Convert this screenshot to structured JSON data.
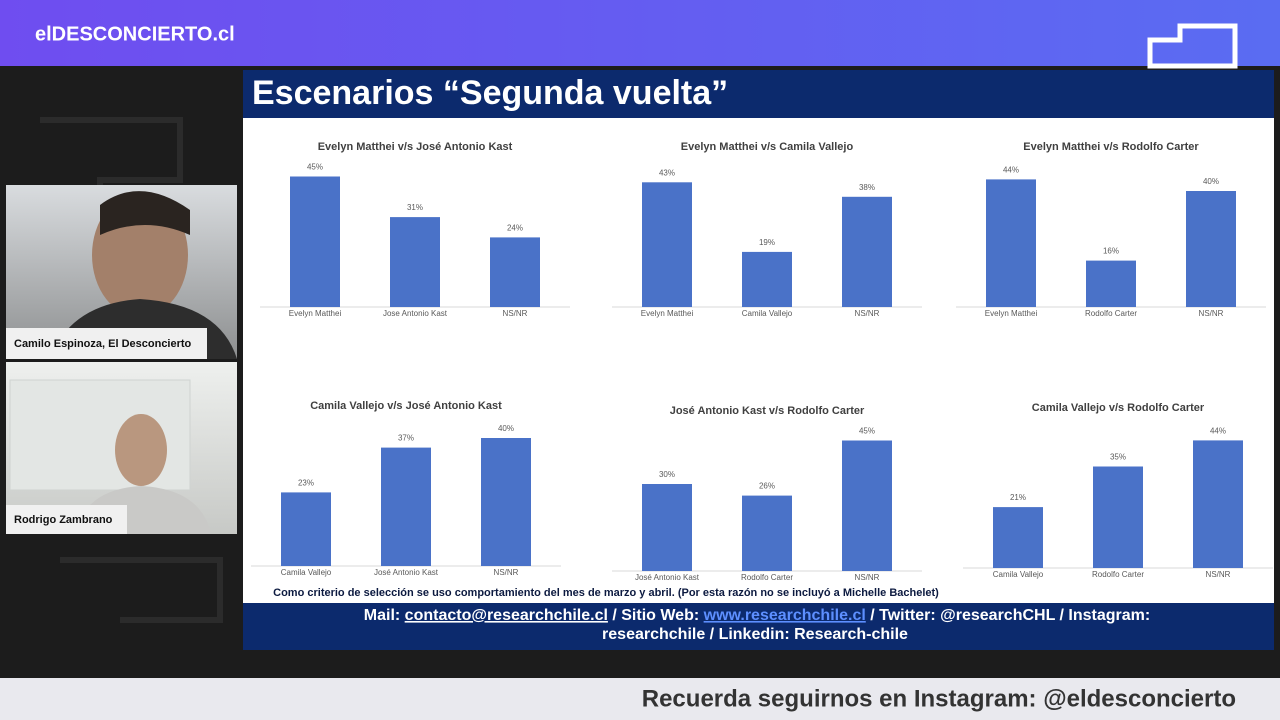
{
  "header": {
    "logo": "elDESCONCIERTO.cl"
  },
  "participants": [
    {
      "name": "Camilo Espinoza, El Desconcierto"
    },
    {
      "name": "Rodrigo Zambrano"
    }
  ],
  "slide": {
    "title": "Escenarios “Segunda vuelta”",
    "note": "Como criterio de selección se uso comportamiento del mes de marzo y abril. (Por esta razón no se incluyó a Michelle Bachelet)",
    "footer": [
      "Mail: ",
      "contacto@researchchile.cl",
      " / Sitio Web: ",
      "www.researchchile.cl",
      " / Twitter: @researchCHL / Instagram:",
      "researchchile / Linkedin: Research-chile"
    ]
  },
  "chart_data": [
    {
      "type": "bar",
      "title": "Evelyn Matthei v/s José Antonio Kast",
      "categories": [
        "Evelyn Matthei",
        "Jose Antonio Kast",
        "NS/NR"
      ],
      "values": [
        45,
        31,
        24
      ],
      "value_labels": [
        "45%",
        "31%",
        "24%"
      ],
      "color": "#4a72c8"
    },
    {
      "type": "bar",
      "title": "Evelyn Matthei v/s Camila Vallejo",
      "categories": [
        "Evelyn Matthei",
        "Camila Vallejo",
        "NS/NR"
      ],
      "values": [
        43,
        19,
        38
      ],
      "value_labels": [
        "43%",
        "19%",
        "38%"
      ],
      "color": "#4a72c8"
    },
    {
      "type": "bar",
      "title": "Evelyn Matthei v/s Rodolfo Carter",
      "categories": [
        "Evelyn Matthei",
        "Rodolfo Carter",
        "NS/NR"
      ],
      "values": [
        44,
        16,
        40
      ],
      "value_labels": [
        "44%",
        "16%",
        "40%"
      ],
      "color": "#4a72c8"
    },
    {
      "type": "bar",
      "title": "Camila Vallejo v/s José Antonio Kast",
      "categories": [
        "Camila Vallejo",
        "José Antonio Kast",
        "NS/NR"
      ],
      "values": [
        23,
        37,
        40
      ],
      "value_labels": [
        "23%",
        "37%",
        "40%"
      ],
      "color": "#4a72c8"
    },
    {
      "type": "bar",
      "title": "José Antonio Kast v/s Rodolfo Carter",
      "categories": [
        "José Antonio Kast",
        "Rodolfo Carter",
        "NS/NR"
      ],
      "values": [
        30,
        26,
        45
      ],
      "value_labels": [
        "30%",
        "26%",
        "45%"
      ],
      "color": "#4a72c8"
    },
    {
      "type": "bar",
      "title": "Camila Vallejo v/s Rodolfo Carter",
      "categories": [
        "Camila Vallejo",
        "Rodolfo Carter",
        "NS/NR"
      ],
      "values": [
        21,
        35,
        44
      ],
      "value_labels": [
        "21%",
        "35%",
        "44%"
      ],
      "color": "#4a72c8"
    }
  ],
  "ticker": {
    "text": "Recuerda seguirnos en Instagram: @eldesconcierto"
  }
}
